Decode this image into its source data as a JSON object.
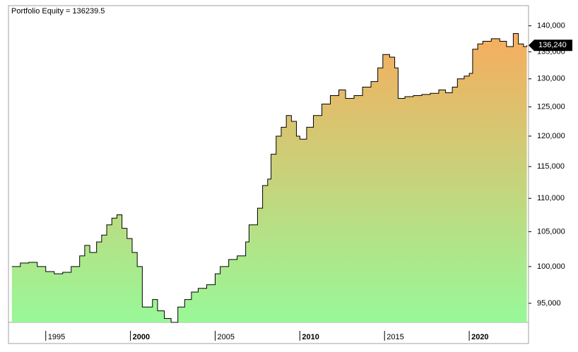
{
  "chart_data": {
    "type": "area",
    "title": "Portfolio Equity = 136239.5",
    "x": [
      1993.0,
      1993.5,
      1994.0,
      1994.5,
      1995.0,
      1995.5,
      1996.0,
      1996.5,
      1997.0,
      1997.3,
      1997.6,
      1998.0,
      1998.3,
      1998.6,
      1998.9,
      1999.2,
      1999.5,
      1999.8,
      2000.1,
      2000.4,
      2000.7,
      2001.0,
      2001.3,
      2001.6,
      2002.0,
      2002.4,
      2002.8,
      2003.2,
      2003.6,
      2004.0,
      2004.5,
      2005.0,
      2005.3,
      2005.8,
      2006.3,
      2006.8,
      2007.0,
      2007.5,
      2007.8,
      2008.1,
      2008.3,
      2008.6,
      2008.9,
      2009.2,
      2009.5,
      2009.8,
      2010.0,
      2010.4,
      2010.8,
      2011.3,
      2011.8,
      2012.3,
      2012.7,
      2013.2,
      2013.7,
      2014.2,
      2014.6,
      2014.9,
      2015.3,
      2015.6,
      2015.8,
      2016.2,
      2016.7,
      2017.2,
      2017.7,
      2018.2,
      2018.6,
      2019.0,
      2019.3,
      2019.7,
      2020.0,
      2020.2,
      2020.5,
      2020.8,
      2021.3,
      2021.8,
      2022.2,
      2022.6,
      2022.9,
      2023.2,
      2023.4
    ],
    "values": [
      100000,
      100500,
      100600,
      100000,
      99300,
      99000,
      99200,
      100000,
      101500,
      103000,
      102000,
      103500,
      104500,
      106000,
      107000,
      107500,
      105500,
      104000,
      102000,
      100000,
      94500,
      94500,
      95500,
      94000,
      93000,
      92500,
      94500,
      95500,
      96500,
      97000,
      97500,
      99000,
      100000,
      101000,
      101500,
      103500,
      106000,
      108500,
      112000,
      113000,
      117000,
      120000,
      121500,
      123500,
      122500,
      120000,
      119500,
      121500,
      123500,
      125500,
      127000,
      128000,
      126500,
      127000,
      128500,
      129500,
      132000,
      134500,
      134000,
      132000,
      126500,
      126800,
      127000,
      127200,
      127400,
      128000,
      127500,
      128500,
      130000,
      130500,
      131000,
      135500,
      136500,
      137000,
      137500,
      137000,
      136000,
      138500,
      136500,
      136000,
      136240
    ],
    "current_value": {
      "value": 136240,
      "label": "136,240"
    },
    "xlim": [
      1992.8,
      2023.5
    ],
    "xticks": [
      1995,
      2000,
      2005,
      2010,
      2015,
      2020
    ],
    "ylim": [
      92500,
      144000
    ],
    "log_y": true,
    "yticks": [
      {
        "value": 95000,
        "label": "95,000"
      },
      {
        "value": 100000,
        "label": "100,000"
      },
      {
        "value": 105000,
        "label": "105,000"
      },
      {
        "value": 110000,
        "label": "110,000"
      },
      {
        "value": 115000,
        "label": "115,000"
      },
      {
        "value": 120000,
        "label": "120,000"
      },
      {
        "value": 125000,
        "label": "125,000"
      },
      {
        "value": 130000,
        "label": "130,000"
      },
      {
        "value": 135000,
        "label": "135,000"
      },
      {
        "value": 140000,
        "label": "140,000"
      }
    ],
    "colors": {
      "bottom": "#98f898",
      "top": "#f6ad5e",
      "line": "#000000"
    }
  }
}
